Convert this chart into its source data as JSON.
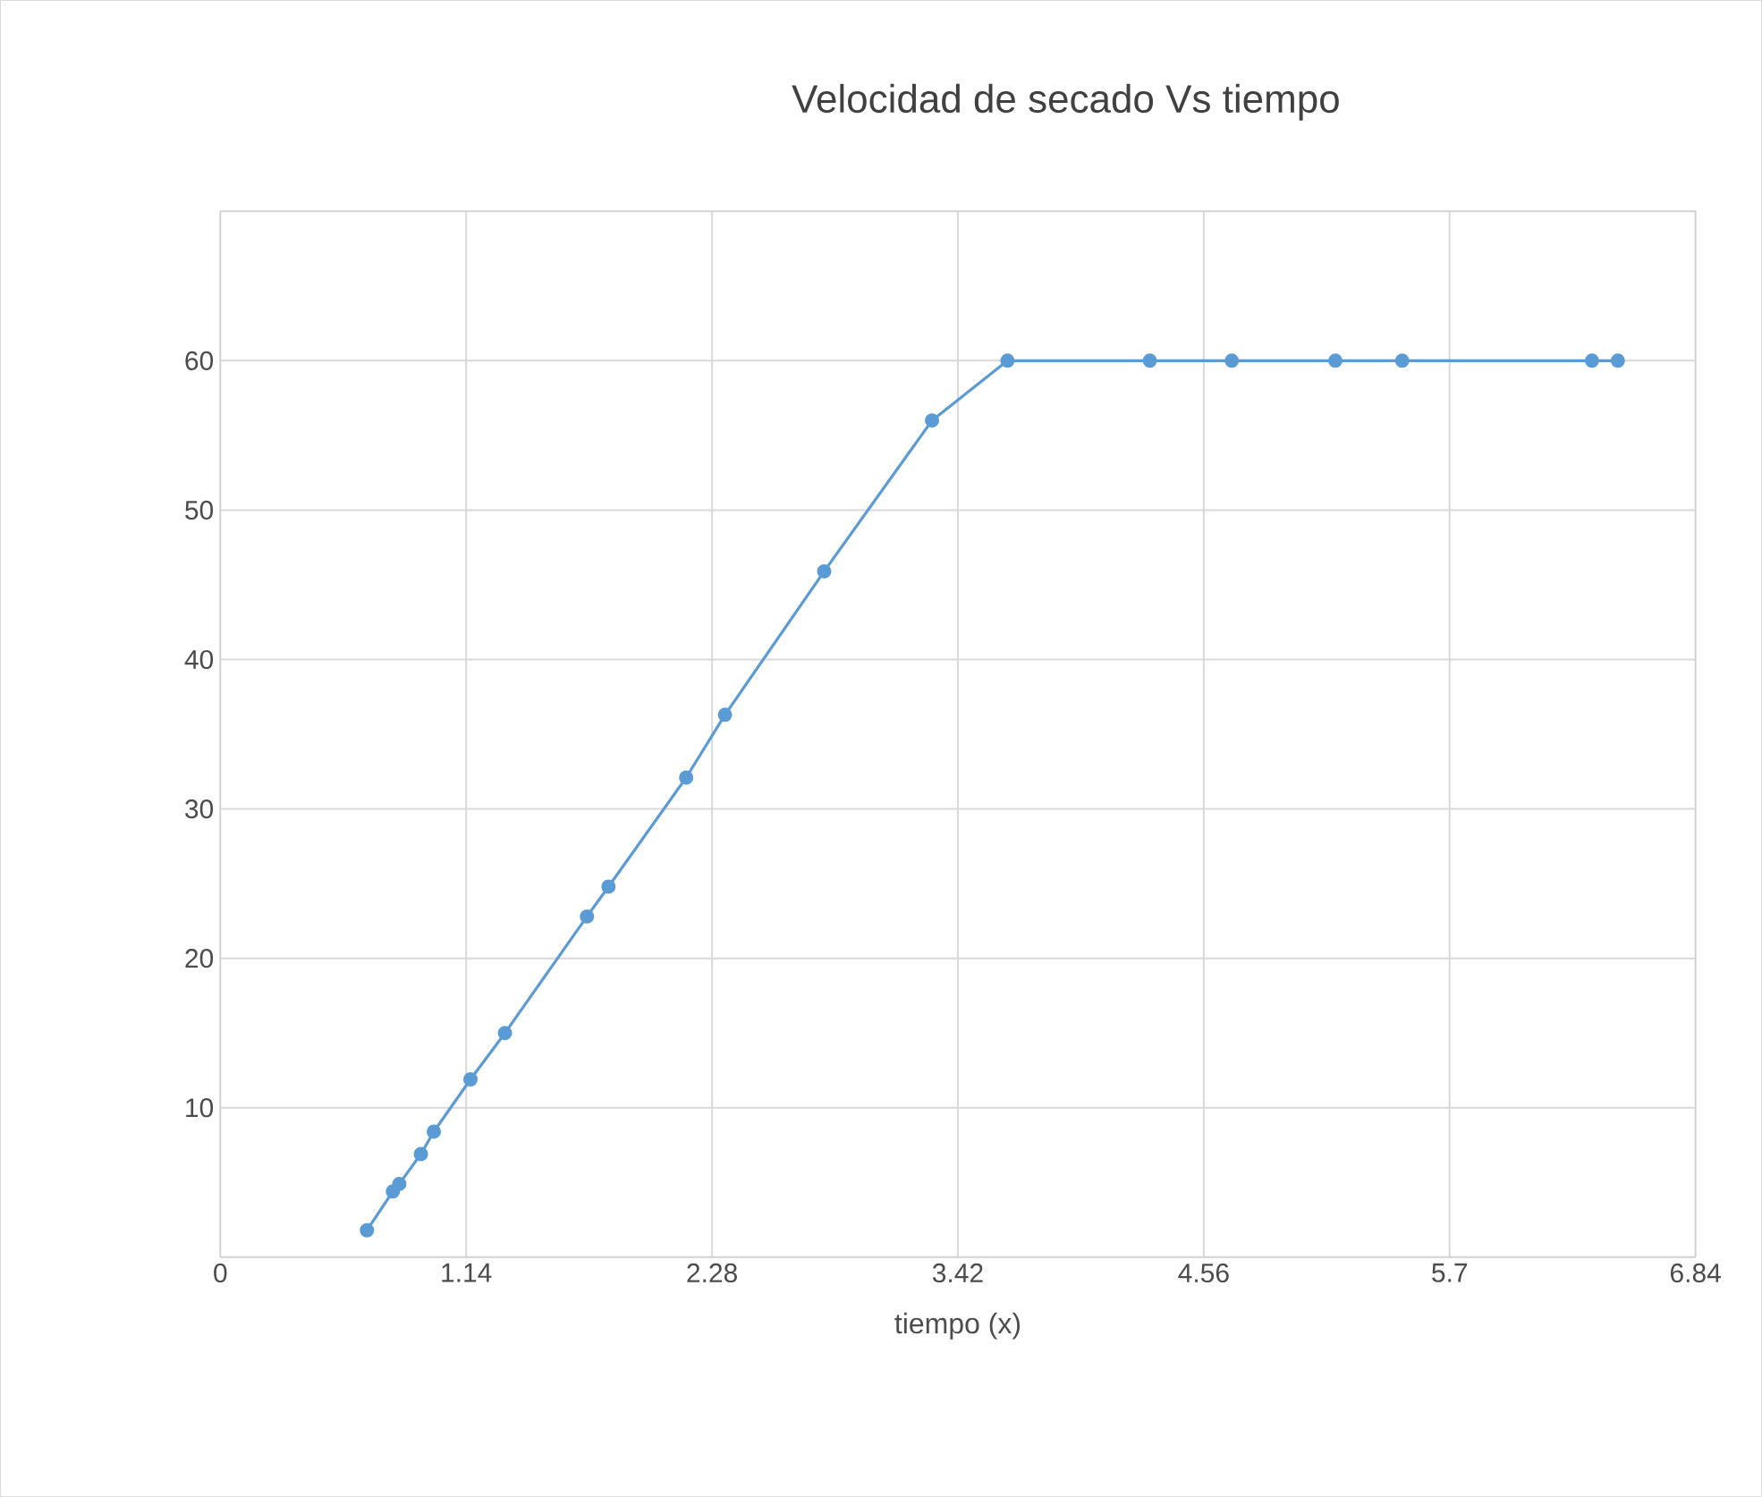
{
  "chart_data": {
    "type": "line",
    "title": "Velocidad de secado Vs tiempo",
    "xlabel": "tiempo (x)",
    "xlim": [
      0,
      6.84
    ],
    "xticks": [
      0,
      1.14,
      2.28,
      3.42,
      4.56,
      5.7,
      6.84
    ],
    "ylim": [
      0,
      70
    ],
    "yticks": [
      {
        "value": 0,
        "label": null
      },
      10,
      20,
      30,
      40,
      50,
      60,
      {
        "value": 70,
        "label": null
      }
    ],
    "grid": true,
    "marker": "circle",
    "line_style": "solid",
    "series": [
      {
        "color": "#5b9bd5",
        "x": [
          0.68,
          0.8,
          0.83,
          0.93,
          0.99,
          1.16,
          1.32,
          1.7,
          1.8,
          2.16,
          2.34,
          2.8,
          3.3,
          3.65,
          4.31,
          4.69,
          5.17,
          5.48,
          6.36,
          6.48
        ],
        "values": [
          1.8,
          4.4,
          4.9,
          6.9,
          8.4,
          11.9,
          15.0,
          22.8,
          24.8,
          32.1,
          36.3,
          45.9,
          56.0,
          60,
          60,
          60,
          60,
          60,
          60,
          60
        ]
      }
    ]
  }
}
